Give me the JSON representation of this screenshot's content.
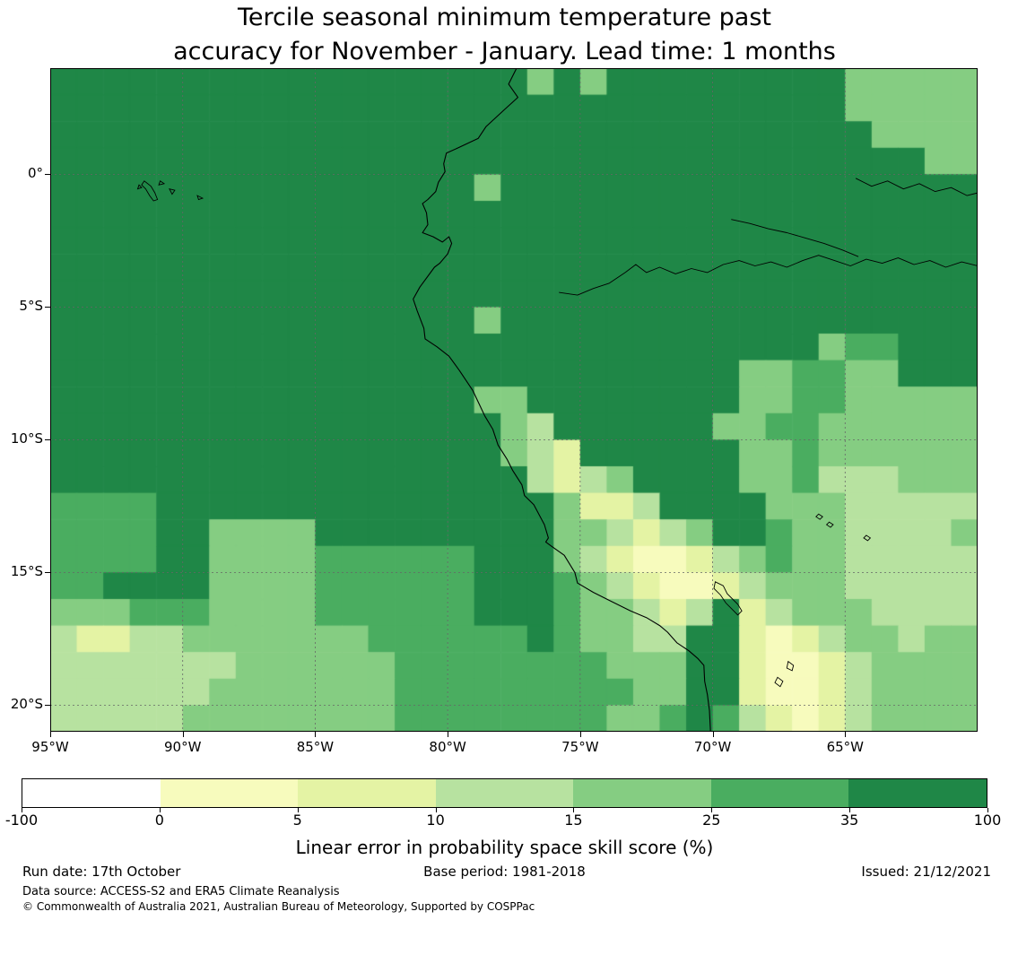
{
  "title": {
    "line1": "Tercile seasonal minimum temperature past",
    "line2": "accuracy for November - January. Lead time: 1 months"
  },
  "colorbar": {
    "label": "Linear error in probability space skill score (%)",
    "tick_labels": [
      "-100",
      "0",
      "5",
      "10",
      "15",
      "25",
      "35",
      "100"
    ]
  },
  "footer": {
    "run_date": "Run date: 17th October",
    "base_period": "Base period: 1981-2018",
    "issued": "Issued: 21/12/2021",
    "data_source": "Data source: ACCESS-S2 and ERA5 Climate Reanalysis",
    "copyright": "© Commonwealth of Australia 2021, Australian Bureau of Meteorology, Supported by COSPPac"
  },
  "chart_data": {
    "type": "heatmap",
    "title": "Tercile seasonal minimum temperature past accuracy for November - January. Lead time: 1 months",
    "units": "%",
    "thresholds": [
      -100,
      0,
      5,
      10,
      15,
      25,
      35,
      100
    ],
    "palette": [
      "#ffffff",
      "#f7fbbd",
      "#e4f3a4",
      "#b7e2a0",
      "#85cd82",
      "#4aad60",
      "#1f8747"
    ],
    "colors": {
      "grid": "#666666",
      "coast": "#000000",
      "background": "#ffffff"
    },
    "extent": {
      "lon_min": -95,
      "lon_max": -60,
      "lat_min": -21,
      "lat_max": 4
    },
    "x_ticks": [
      {
        "label": "95°W",
        "lon": -95
      },
      {
        "label": "90°W",
        "lon": -90
      },
      {
        "label": "85°W",
        "lon": -85
      },
      {
        "label": "80°W",
        "lon": -80
      },
      {
        "label": "75°W",
        "lon": -75
      },
      {
        "label": "70°W",
        "lon": -70
      },
      {
        "label": "65°W",
        "lon": -65
      }
    ],
    "y_ticks": [
      {
        "label": "0°",
        "lat": 0
      },
      {
        "label": "5°S",
        "lat": -5
      },
      {
        "label": "10°S",
        "lat": -10
      },
      {
        "label": "15°S",
        "lat": -15
      },
      {
        "label": "20°S",
        "lat": -20
      }
    ],
    "grid": {
      "cell_deg": 1,
      "note": "rows are run-length encoded skill-score classes, index into palette; row 0 = lat 4..3N, col 0 = lon 95..94W",
      "rows": [
        "18:6,1:4,1:6,1:4,9:6,5:4",
        "30:6,5:4",
        "31:6,4:4",
        "33:6,2:4",
        "16:6,1:4,18:6",
        "35:6",
        "35:6",
        "35:6",
        "35:6",
        "16:6,1:4,18:6",
        "29:6,1:4,2:5,3:6",
        "26:6,2:4,2:5,2:4,3:6",
        "16:6,2:4,8:6,2:4,2:5,5:4",
        "17:6,1:4,1:3,6:6,2:4,2:5,6:4",
        "17:6,1:4,1:3,1:2,6:6,2:4,1:5,6:4",
        "18:6,1:3,1:2,1:3,1:4,4:6,2:4,1:5,3:3,3:4",
        "4:5,15:6,1:4,2:2,1:3,4:6,3:4,5:3",
        "4:5,2:6,4:4,9:6,2:4,1:3,1:2,1:3,1:4,2:6,1:5,2:4,4:3,1:4",
        "4:5,2:6,4:4,6:5,3:6,1:4,1:3,1:2,2:1,1:2,1:3,1:4,1:5,2:4,5:3",
        "2:5,4:6,4:4,6:5,3:6,1:5,1:4,1:3,1:2,2:1,1:2,1:3,3:4,5:3",
        "3:4,3:5,4:4,6:5,3:6,1:5,2:4,1:3,1:2,1:3,1:6,1:2,1:3,3:4,4:3",
        "1:3,2:2,2:3,7:4,6:5,1:6,1:5,2:4,2:3,2:6,1:2,1:1,1:2,1:3,2:4,1:3,2:4",
        "7:3,6:4,6:5,2:5,3:4,2:6,1:2,2:1,1:2,1:3,4:4",
        "6:3,7:4,6:5,3:5,2:4,2:6,1:2,2:1,1:2,1:3,4:4",
        "5:3,8:4,6:5,2:5,2:4,1:5,1:6,1:5,1:3,1:2,1:1,1:2,1:3,4:4"
      ]
    },
    "geo": {
      "coastline": [
        [
          -77.4,
          4.0
        ],
        [
          -77.7,
          3.4
        ],
        [
          -77.35,
          2.9
        ],
        [
          -77.9,
          2.4
        ],
        [
          -78.55,
          1.8
        ],
        [
          -78.85,
          1.35
        ],
        [
          -79.6,
          1.0
        ],
        [
          -80.05,
          0.8
        ],
        [
          -80.15,
          0.4
        ],
        [
          -80.1,
          0.1
        ],
        [
          -80.35,
          -0.3
        ],
        [
          -80.45,
          -0.65
        ],
        [
          -80.75,
          -0.95
        ],
        [
          -80.95,
          -1.1
        ],
        [
          -80.8,
          -1.45
        ],
        [
          -80.75,
          -1.9
        ],
        [
          -80.95,
          -2.2
        ],
        [
          -80.55,
          -2.35
        ],
        [
          -80.2,
          -2.55
        ],
        [
          -79.95,
          -2.35
        ],
        [
          -79.85,
          -2.6
        ],
        [
          -80.0,
          -3.0
        ],
        [
          -80.3,
          -3.35
        ],
        [
          -80.5,
          -3.5
        ],
        [
          -81.05,
          -4.25
        ],
        [
          -81.3,
          -4.7
        ],
        [
          -81.15,
          -5.15
        ],
        [
          -80.9,
          -5.8
        ],
        [
          -80.85,
          -6.2
        ],
        [
          -80.4,
          -6.5
        ],
        [
          -79.95,
          -6.85
        ],
        [
          -79.55,
          -7.4
        ],
        [
          -79.05,
          -8.15
        ],
        [
          -78.6,
          -9.1
        ],
        [
          -78.3,
          -9.6
        ],
        [
          -78.1,
          -10.2
        ],
        [
          -77.75,
          -10.75
        ],
        [
          -77.55,
          -11.15
        ],
        [
          -77.2,
          -11.7
        ],
        [
          -77.1,
          -12.1
        ],
        [
          -76.75,
          -12.45
        ],
        [
          -76.35,
          -13.2
        ],
        [
          -76.2,
          -13.7
        ],
        [
          -76.3,
          -13.85
        ],
        [
          -76.1,
          -14.0
        ],
        [
          -75.6,
          -14.35
        ],
        [
          -75.2,
          -15.0
        ],
        [
          -75.1,
          -15.4
        ],
        [
          -74.5,
          -15.75
        ],
        [
          -73.8,
          -16.1
        ],
        [
          -73.1,
          -16.45
        ],
        [
          -72.5,
          -16.7
        ],
        [
          -72.0,
          -17.0
        ],
        [
          -71.7,
          -17.25
        ],
        [
          -71.35,
          -17.65
        ],
        [
          -70.9,
          -17.95
        ],
        [
          -70.55,
          -18.25
        ],
        [
          -70.33,
          -18.5
        ],
        [
          -70.3,
          -19.1
        ],
        [
          -70.2,
          -19.6
        ],
        [
          -70.12,
          -20.2
        ],
        [
          -70.08,
          -21.0
        ]
      ],
      "rivers": [
        {
          "name": "amazon",
          "points": [
            [
              -73.3,
              -3.7
            ],
            [
              -72.9,
              -3.4
            ],
            [
              -72.5,
              -3.7
            ],
            [
              -72.0,
              -3.5
            ],
            [
              -71.4,
              -3.75
            ],
            [
              -70.8,
              -3.55
            ],
            [
              -70.2,
              -3.7
            ],
            [
              -69.6,
              -3.4
            ],
            [
              -69.0,
              -3.25
            ],
            [
              -68.4,
              -3.45
            ],
            [
              -67.8,
              -3.3
            ],
            [
              -67.2,
              -3.5
            ],
            [
              -66.6,
              -3.25
            ],
            [
              -66.0,
              -3.05
            ],
            [
              -65.4,
              -3.25
            ],
            [
              -64.8,
              -3.45
            ],
            [
              -64.2,
              -3.2
            ],
            [
              -63.6,
              -3.35
            ],
            [
              -63.0,
              -3.15
            ],
            [
              -62.4,
              -3.4
            ],
            [
              -61.8,
              -3.25
            ],
            [
              -61.2,
              -3.5
            ],
            [
              -60.6,
              -3.3
            ],
            [
              -60.0,
              -3.45
            ]
          ]
        },
        {
          "name": "maranon",
          "points": [
            [
              -73.3,
              -3.7
            ],
            [
              -73.9,
              -4.1
            ],
            [
              -74.5,
              -4.3
            ],
            [
              -75.1,
              -4.55
            ],
            [
              -75.8,
              -4.45
            ]
          ]
        },
        {
          "name": "negro",
          "points": [
            [
              -64.6,
              -0.15
            ],
            [
              -64.0,
              -0.45
            ],
            [
              -63.4,
              -0.25
            ],
            [
              -62.8,
              -0.55
            ],
            [
              -62.2,
              -0.35
            ],
            [
              -61.6,
              -0.65
            ],
            [
              -61.0,
              -0.5
            ],
            [
              -60.4,
              -0.8
            ],
            [
              -60.0,
              -0.7
            ]
          ]
        },
        {
          "name": "japura",
          "points": [
            [
              -69.3,
              -1.7
            ],
            [
              -68.6,
              -1.85
            ],
            [
              -67.9,
              -2.05
            ],
            [
              -67.2,
              -2.2
            ],
            [
              -66.5,
              -2.4
            ],
            [
              -65.8,
              -2.6
            ],
            [
              -65.1,
              -2.85
            ],
            [
              -64.5,
              -3.1
            ]
          ]
        }
      ],
      "lakes": [
        {
          "name": "titicaca",
          "points": [
            [
              -69.9,
              -15.35
            ],
            [
              -69.6,
              -15.5
            ],
            [
              -69.45,
              -15.8
            ],
            [
              -69.25,
              -16.0
            ],
            [
              -69.05,
              -16.2
            ],
            [
              -68.9,
              -16.45
            ],
            [
              -69.05,
              -16.6
            ],
            [
              -69.3,
              -16.35
            ],
            [
              -69.5,
              -16.15
            ],
            [
              -69.7,
              -15.85
            ],
            [
              -69.95,
              -15.6
            ]
          ]
        },
        {
          "name": "poopo",
          "points": [
            [
              -67.15,
              -18.35
            ],
            [
              -66.95,
              -18.5
            ],
            [
              -67.0,
              -18.7
            ],
            [
              -67.2,
              -18.6
            ]
          ]
        },
        {
          "name": "coipasa",
          "points": [
            [
              -67.55,
              -18.95
            ],
            [
              -67.35,
              -19.1
            ],
            [
              -67.45,
              -19.3
            ],
            [
              -67.65,
              -19.15
            ]
          ]
        },
        {
          "name": "rogaguado",
          "points": [
            [
              -66.0,
              -12.8
            ],
            [
              -65.85,
              -12.9
            ],
            [
              -65.95,
              -13.0
            ],
            [
              -66.1,
              -12.9
            ]
          ]
        },
        {
          "name": "rogagua",
          "points": [
            [
              -65.6,
              -13.1
            ],
            [
              -65.45,
              -13.2
            ],
            [
              -65.55,
              -13.3
            ],
            [
              -65.7,
              -13.2
            ]
          ]
        },
        {
          "name": "small-lake",
          "points": [
            [
              -64.2,
              -13.6
            ],
            [
              -64.05,
              -13.7
            ],
            [
              -64.15,
              -13.8
            ],
            [
              -64.3,
              -13.7
            ]
          ]
        }
      ],
      "islands": [
        {
          "name": "isabela",
          "points": [
            [
              -91.45,
              -0.25
            ],
            [
              -91.2,
              -0.45
            ],
            [
              -91.05,
              -0.7
            ],
            [
              -90.95,
              -0.95
            ],
            [
              -91.1,
              -1.0
            ],
            [
              -91.25,
              -0.8
            ],
            [
              -91.4,
              -0.55
            ],
            [
              -91.55,
              -0.4
            ]
          ]
        },
        {
          "name": "fernandina",
          "points": [
            [
              -91.65,
              -0.4
            ],
            [
              -91.55,
              -0.5
            ],
            [
              -91.7,
              -0.55
            ]
          ]
        },
        {
          "name": "santiago",
          "points": [
            [
              -90.85,
              -0.25
            ],
            [
              -90.7,
              -0.35
            ],
            [
              -90.9,
              -0.4
            ]
          ]
        },
        {
          "name": "santa-cruz",
          "points": [
            [
              -90.5,
              -0.55
            ],
            [
              -90.3,
              -0.6
            ],
            [
              -90.4,
              -0.75
            ]
          ]
        },
        {
          "name": "san-cristobal",
          "points": [
            [
              -89.45,
              -0.8
            ],
            [
              -89.25,
              -0.9
            ],
            [
              -89.4,
              -0.95
            ]
          ]
        }
      ]
    }
  }
}
